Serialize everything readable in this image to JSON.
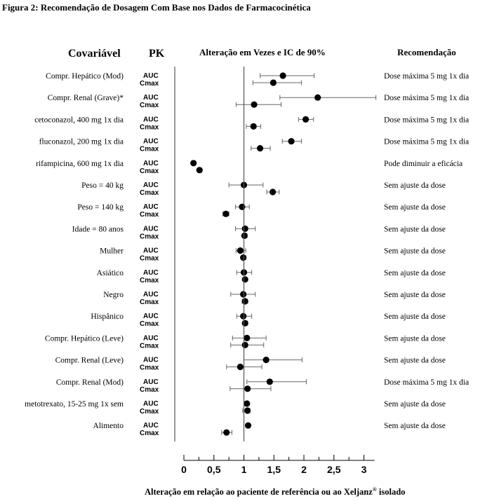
{
  "figure_title": "Figura 2: Recomendação de Dosagem Com Base nos Dados de Farmacocinética",
  "headers": {
    "covariate": "Covariável",
    "pk": "PK",
    "change": "Alteração em Vezes e IC de 90%",
    "recommendation": "Recomendação"
  },
  "xaxis_label": "Alteração em relação ao paciente de referência ou ao Xeljanz",
  "xaxis_label_sup": "®",
  "xaxis_label_suffix": " isolado",
  "chart_data": {
    "type": "forest",
    "xlim": [
      0,
      3
    ],
    "reference_line": 1,
    "xticks": [
      {
        "value": 0,
        "label": "0"
      },
      {
        "value": 0.5,
        "label": "0,5"
      },
      {
        "value": 1,
        "label": "1"
      },
      {
        "value": 1.5,
        "label": "1,5"
      },
      {
        "value": 2,
        "label": "2"
      },
      {
        "value": 2.5,
        "label": "2,5"
      },
      {
        "value": 3,
        "label": "3"
      }
    ],
    "minor_ticks": [
      0.25,
      0.75,
      1.25,
      1.75,
      2.25,
      2.75
    ],
    "rows": [
      {
        "covariate": "Compr. Hepático (Mod)",
        "recommendation": "Dose máxima 5 mg 1x dia",
        "auc": {
          "label": "AUC",
          "est": 1.65,
          "lo": 1.27,
          "hi": 2.17
        },
        "cmax": {
          "label": "Cmax",
          "est": 1.49,
          "lo": 1.15,
          "hi": 1.96
        }
      },
      {
        "covariate": "Compr. Renal (Grave)*",
        "recommendation": "Dose máxima 5 mg 1x dia",
        "auc": {
          "label": "AUC",
          "est": 2.23,
          "lo": 1.6,
          "hi": 3.2
        },
        "cmax": {
          "label": "Cmax",
          "est": 1.17,
          "lo": 0.87,
          "hi": 1.62
        }
      },
      {
        "covariate": "cetoconazol, 400 mg 1x dia",
        "recommendation": "Dose máxima 5 mg 1x dia",
        "auc": {
          "label": "AUC",
          "est": 2.03,
          "lo": 1.91,
          "hi": 2.16
        },
        "cmax": {
          "label": "Cmax",
          "est": 1.16,
          "lo": 1.04,
          "hi": 1.28
        }
      },
      {
        "covariate": "fluconazol, 200 mg 1x dia",
        "recommendation": "Dose máxima 5 mg 1x dia",
        "auc": {
          "label": "AUC",
          "est": 1.79,
          "lo": 1.64,
          "hi": 1.96
        },
        "cmax": {
          "label": "Cmax",
          "est": 1.27,
          "lo": 1.12,
          "hi": 1.44
        }
      },
      {
        "covariate": "rifampicina, 600 mg 1x dia",
        "recommendation": "Pode diminuir a eficácia",
        "auc": {
          "label": "AUC",
          "est": 0.16,
          "lo": 0.14,
          "hi": 0.19
        },
        "cmax": {
          "label": "Cmax",
          "est": 0.26,
          "lo": 0.23,
          "hi": 0.3
        }
      },
      {
        "covariate": "Peso = 40 kg",
        "recommendation": "Sem ajuste da dose",
        "auc": {
          "label": "AUC",
          "est": 1.0,
          "lo": 0.75,
          "hi": 1.32
        },
        "cmax": {
          "label": "Cmax",
          "est": 1.48,
          "lo": 1.38,
          "hi": 1.59
        }
      },
      {
        "covariate": "Peso = 140 kg",
        "recommendation": "Sem ajuste da dose",
        "auc": {
          "label": "AUC",
          "est": 0.97,
          "lo": 0.86,
          "hi": 1.09
        },
        "cmax": {
          "label": "Cmax",
          "est": 0.7,
          "lo": 0.65,
          "hi": 0.75
        }
      },
      {
        "covariate": "Idade = 80 anos",
        "recommendation": "Sem ajuste da dose",
        "auc": {
          "label": "AUC",
          "est": 1.02,
          "lo": 0.86,
          "hi": 1.19
        },
        "cmax": {
          "label": "Cmax",
          "est": 1.01,
          "lo": 0.98,
          "hi": 1.05
        }
      },
      {
        "covariate": "Mulher",
        "recommendation": "Sem ajuste da dose",
        "auc": {
          "label": "AUC",
          "est": 0.94,
          "lo": 0.87,
          "hi": 1.03
        },
        "cmax": {
          "label": "Cmax",
          "est": 0.99,
          "lo": 0.96,
          "hi": 1.03
        }
      },
      {
        "covariate": "Asiático",
        "recommendation": "Sem ajuste da dose",
        "auc": {
          "label": "AUC",
          "est": 1.0,
          "lo": 0.88,
          "hi": 1.13
        },
        "cmax": {
          "label": "Cmax",
          "est": 1.02,
          "lo": 0.99,
          "hi": 1.05
        }
      },
      {
        "covariate": "Negro",
        "recommendation": "Sem ajuste da dose",
        "auc": {
          "label": "AUC",
          "est": 0.99,
          "lo": 0.78,
          "hi": 1.19
        },
        "cmax": {
          "label": "Cmax",
          "est": 1.02,
          "lo": 0.97,
          "hi": 1.06
        }
      },
      {
        "covariate": "Hispânico",
        "recommendation": "Sem ajuste da dose",
        "auc": {
          "label": "AUC",
          "est": 0.99,
          "lo": 0.88,
          "hi": 1.13
        },
        "cmax": {
          "label": "Cmax",
          "est": 1.02,
          "lo": 0.98,
          "hi": 1.06
        }
      },
      {
        "covariate": "Compr. Hepático (Leve)",
        "recommendation": "Sem ajuste da dose",
        "auc": {
          "label": "AUC",
          "est": 1.05,
          "lo": 0.81,
          "hi": 1.37
        },
        "cmax": {
          "label": "Cmax",
          "est": 1.02,
          "lo": 0.78,
          "hi": 1.33
        }
      },
      {
        "covariate": "Compr. Renal (Leve)",
        "recommendation": "Sem ajuste da dose",
        "auc": {
          "label": "AUC",
          "est": 1.37,
          "lo": 1.0,
          "hi": 1.97
        },
        "cmax": {
          "label": "Cmax",
          "est": 0.94,
          "lo": 0.71,
          "hi": 1.3
        }
      },
      {
        "covariate": "Compr. Renal (Mod)",
        "recommendation": "Dose máxima 5 mg 1x dia",
        "auc": {
          "label": "AUC",
          "est": 1.43,
          "lo": 1.05,
          "hi": 2.04
        },
        "cmax": {
          "label": "Cmax",
          "est": 1.06,
          "lo": 0.77,
          "hi": 1.45
        }
      },
      {
        "covariate": "metotrexato, 15-25 mg 1x sem",
        "recommendation": "Sem ajuste da dose",
        "auc": {
          "label": "AUC",
          "est": 1.05,
          "lo": 1.02,
          "hi": 1.08
        },
        "cmax": {
          "label": "Cmax",
          "est": 1.06,
          "lo": 0.98,
          "hi": 1.1
        }
      },
      {
        "covariate": "Alimento",
        "recommendation": "Sem ajuste da dose",
        "auc": {
          "label": "AUC",
          "est": 1.07,
          "lo": 1.04,
          "hi": 1.1
        },
        "cmax": {
          "label": "Cmax",
          "est": 0.71,
          "lo": 0.63,
          "hi": 0.8
        }
      }
    ]
  }
}
